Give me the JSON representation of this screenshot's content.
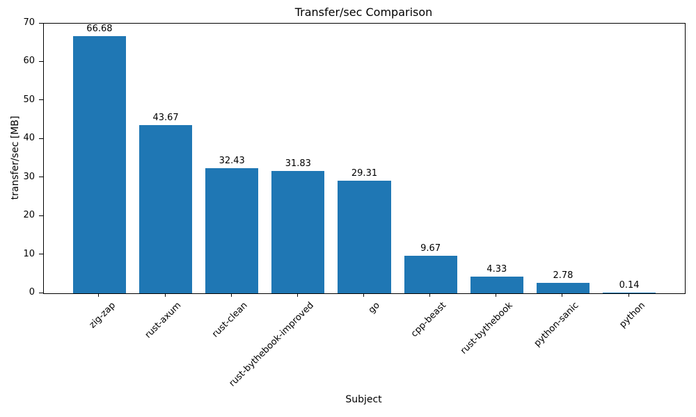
{
  "chart_data": {
    "type": "bar",
    "title": "Transfer/sec Comparison",
    "xlabel": "Subject",
    "ylabel": "transfer/sec [MB]",
    "categories": [
      "zig-zap",
      "rust-axum",
      "rust-clean",
      "rust-bythebook-improved",
      "go",
      "cpp-beast",
      "rust-bythebook",
      "python-sanic",
      "python"
    ],
    "values": [
      66.68,
      43.67,
      32.43,
      31.83,
      29.31,
      9.67,
      4.33,
      2.78,
      0.14
    ],
    "value_labels": [
      "66.68",
      "43.67",
      "32.43",
      "31.83",
      "29.31",
      "9.67",
      "4.33",
      "2.78",
      "0.14"
    ],
    "ylim": [
      0,
      70
    ],
    "yticks": [
      0,
      10,
      20,
      30,
      40,
      50,
      60,
      70
    ],
    "bar_color": "#1f77b4",
    "axis_color": "#000000",
    "legend": "none",
    "grid": "off"
  }
}
